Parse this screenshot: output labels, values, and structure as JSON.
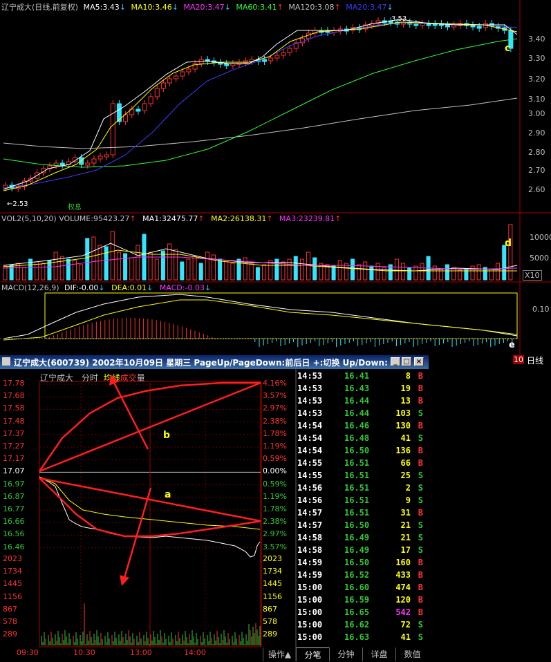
{
  "kline": {
    "title": "辽宁成大(日线,前复权)",
    "ma5": "MA5:3.43",
    "ma10": "MA10:3.46",
    "ma20": "MA20:3.47",
    "ma60": "MA60:3.41",
    "ma120": "MA120:3.08",
    "ma20b": "MA20:3.47",
    "high_marker": "3.53",
    "low_marker": "←2.53",
    "event_marker": "权息",
    "annotation_c": "c",
    "price_ticks": [
      "3.40",
      "3.30",
      "3.20",
      "3.10",
      "3.00",
      "2.90",
      "2.80",
      "2.70",
      "2.60"
    ]
  },
  "volume_panel": {
    "title": "VOL2(5,10,20)",
    "volume": "VOLUME:95423.27",
    "ma1": "MA1:32475.77",
    "ma2": "MA2:26138.31",
    "ma3": "MA3:23239.81",
    "ticks": [
      "10000",
      "5000"
    ],
    "unit": "X10",
    "annotation_d": "d"
  },
  "macd_panel": {
    "title": "MACD(12,26,9)",
    "dif": "DIF:-0.00",
    "dea": "DEA:0.01",
    "macd": "MACD:-0.03",
    "tick": "0.10",
    "annotation_e": "e",
    "date_marker": "10",
    "period_label": "日线"
  },
  "intraday_window": {
    "title": "辽宁成大(600739) 2002年10月09日 星期三 PageUp/PageDown:前后日 +:切换 Up/Down:上下翻",
    "stock_name": "辽宁成大",
    "mode_minute": "分时",
    "mode_avg": "均线",
    "mode_vol_a": "成交",
    "mode_vol_b": "量",
    "prices": [
      "17.78",
      "17.68",
      "17.58",
      "17.48",
      "17.37",
      "17.27",
      "17.17",
      "17.07",
      "16.97",
      "16.87",
      "16.77",
      "16.66",
      "16.56",
      "16.46"
    ],
    "percents": [
      "4.16%",
      "3.57%",
      "2.97%",
      "2.38%",
      "1.78%",
      "1.19%",
      "0.59%",
      "0.00%",
      "0.59%",
      "1.19%",
      "1.78%",
      "2.38%",
      "2.97%",
      "3.57%"
    ],
    "vol_ticks": [
      "2023",
      "1734",
      "1445",
      "1156",
      "867",
      "578",
      "289"
    ],
    "times": [
      "09:30",
      "10:30",
      "13:00",
      "14:00"
    ],
    "annotation_a": "a",
    "annotation_b": "b",
    "tabs": [
      "操作▲",
      "分笔",
      "分钟",
      "详盘",
      "数值"
    ],
    "colors": {
      "up": "#ff3232",
      "down": "#32c832",
      "flat": "#ffffff",
      "buy_big": "#ff32ff"
    }
  },
  "trades": [
    {
      "time": "14:53",
      "price": "16.41",
      "vol": "8",
      "side": "B"
    },
    {
      "time": "14:53",
      "price": "16.43",
      "vol": "19",
      "side": "B"
    },
    {
      "time": "14:53",
      "price": "16.44",
      "vol": "13",
      "side": "B"
    },
    {
      "time": "14:53",
      "price": "16.44",
      "vol": "103",
      "side": "S"
    },
    {
      "time": "14:54",
      "price": "16.46",
      "vol": "130",
      "side": "B"
    },
    {
      "time": "14:54",
      "price": "16.48",
      "vol": "41",
      "side": "S"
    },
    {
      "time": "14:54",
      "price": "16.50",
      "vol": "136",
      "side": "B"
    },
    {
      "time": "14:55",
      "price": "16.51",
      "vol": "66",
      "side": "B"
    },
    {
      "time": "14:55",
      "price": "16.51",
      "vol": "25",
      "side": "S"
    },
    {
      "time": "14:56",
      "price": "16.51",
      "vol": "2",
      "side": "S"
    },
    {
      "time": "14:56",
      "price": "16.51",
      "vol": "9",
      "side": "S"
    },
    {
      "time": "14:57",
      "price": "16.51",
      "vol": "31",
      "side": "B"
    },
    {
      "time": "14:57",
      "price": "16.50",
      "vol": "21",
      "side": "S"
    },
    {
      "time": "14:58",
      "price": "16.49",
      "vol": "21",
      "side": "S"
    },
    {
      "time": "14:58",
      "price": "16.49",
      "vol": "17",
      "side": "S"
    },
    {
      "time": "14:59",
      "price": "16.50",
      "vol": "160",
      "side": "B"
    },
    {
      "time": "14:59",
      "price": "16.52",
      "vol": "433",
      "side": "B"
    },
    {
      "time": "15:00",
      "price": "16.60",
      "vol": "474",
      "side": "B"
    },
    {
      "time": "15:00",
      "price": "16.59",
      "vol": "120",
      "side": "B"
    },
    {
      "time": "15:00",
      "price": "16.65",
      "vol": "542",
      "side": "B"
    },
    {
      "time": "15:00",
      "price": "16.62",
      "vol": "72",
      "side": "S"
    },
    {
      "time": "15:00",
      "price": "16.63",
      "vol": "41",
      "side": "S"
    }
  ]
}
